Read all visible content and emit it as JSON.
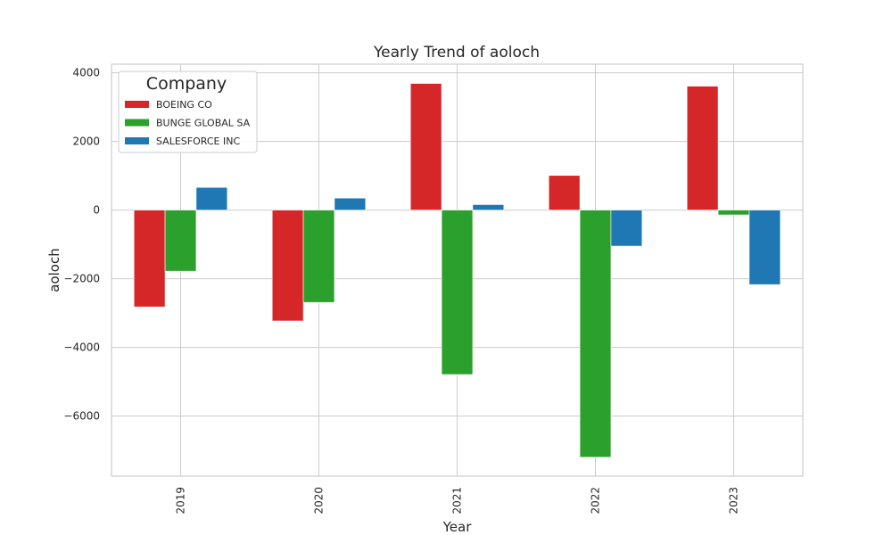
{
  "chart_data": {
    "type": "bar",
    "title": "Yearly Trend of aoloch",
    "xlabel": "Year",
    "ylabel": "aoloch",
    "categories": [
      "2019",
      "2020",
      "2021",
      "2022",
      "2023"
    ],
    "series": [
      {
        "name": "BOEING CO",
        "color": "#d62728",
        "values": [
          -2820,
          -3230,
          3690,
          1010,
          3610
        ]
      },
      {
        "name": "BUNGE GLOBAL SA",
        "color": "#2ca02c",
        "values": [
          -1780,
          -2690,
          -4790,
          -7200,
          -140
        ]
      },
      {
        "name": "SALESFORCE INC",
        "color": "#1f77b4",
        "values": [
          660,
          350,
          160,
          -1050,
          -2170
        ]
      }
    ],
    "ylim": [
      -7750,
      4250
    ],
    "yticks": [
      4000,
      2000,
      0,
      -2000,
      -4000,
      -6000
    ],
    "ytick_labels": [
      "4000",
      "2000",
      "0",
      "−2000",
      "−4000",
      "−6000"
    ],
    "grid": true,
    "legend": {
      "title": "Company",
      "placement": "top-left"
    }
  }
}
